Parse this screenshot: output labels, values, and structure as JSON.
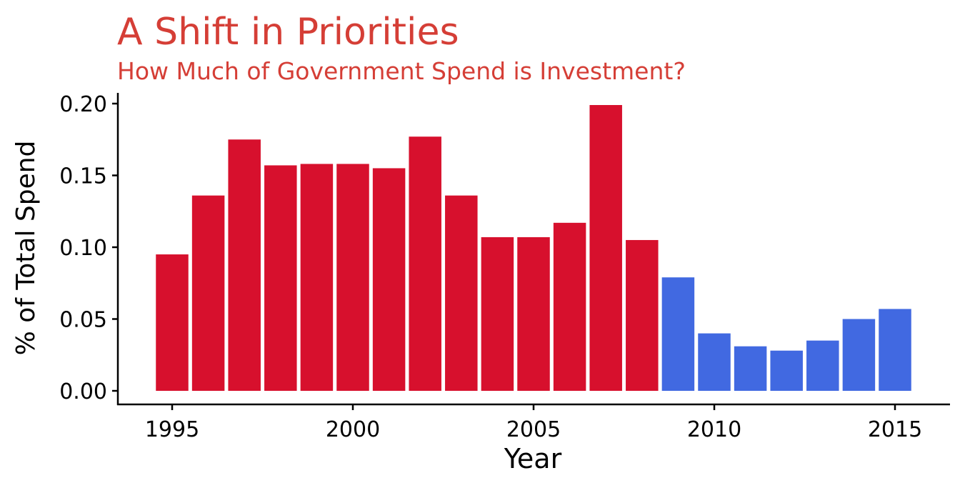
{
  "chart_data": {
    "type": "bar",
    "title": "A Shift in Priorities",
    "subtitle": "How Much of Government Spend is Investment?",
    "xlabel": "Year",
    "ylabel": "% of Total Spend",
    "x": [
      1995,
      1996,
      1997,
      1998,
      1999,
      2000,
      2001,
      2002,
      2003,
      2004,
      2005,
      2006,
      2007,
      2008,
      2009,
      2010,
      2011,
      2012,
      2013,
      2014,
      2015
    ],
    "values": [
      0.095,
      0.136,
      0.175,
      0.157,
      0.158,
      0.158,
      0.155,
      0.177,
      0.136,
      0.107,
      0.107,
      0.117,
      0.199,
      0.105,
      0.079,
      0.04,
      0.031,
      0.028,
      0.035,
      0.05,
      0.057
    ],
    "bar_colors": [
      "#D7102D",
      "#D7102D",
      "#D7102D",
      "#D7102D",
      "#D7102D",
      "#D7102D",
      "#D7102D",
      "#D7102D",
      "#D7102D",
      "#D7102D",
      "#D7102D",
      "#D7102D",
      "#D7102D",
      "#D7102D",
      "#4169E1",
      "#4169E1",
      "#4169E1",
      "#4169E1",
      "#4169E1",
      "#4169E1",
      "#4169E1"
    ],
    "xticks": [
      "1995",
      "2000",
      "2005",
      "2010",
      "2015"
    ],
    "xtick_values": [
      1995,
      2000,
      2005,
      2010,
      2015
    ],
    "yticks": [
      "0.00",
      "0.05",
      "0.10",
      "0.15",
      "0.20"
    ],
    "ytick_values": [
      0.0,
      0.05,
      0.1,
      0.15,
      0.2
    ],
    "ylim": [
      0,
      0.205
    ],
    "xlim": [
      1993.9,
      2016.6
    ],
    "grid": false,
    "legend": "none",
    "colors": {
      "title": "#D53E36",
      "axis": "#000000",
      "text": "#000000"
    }
  }
}
